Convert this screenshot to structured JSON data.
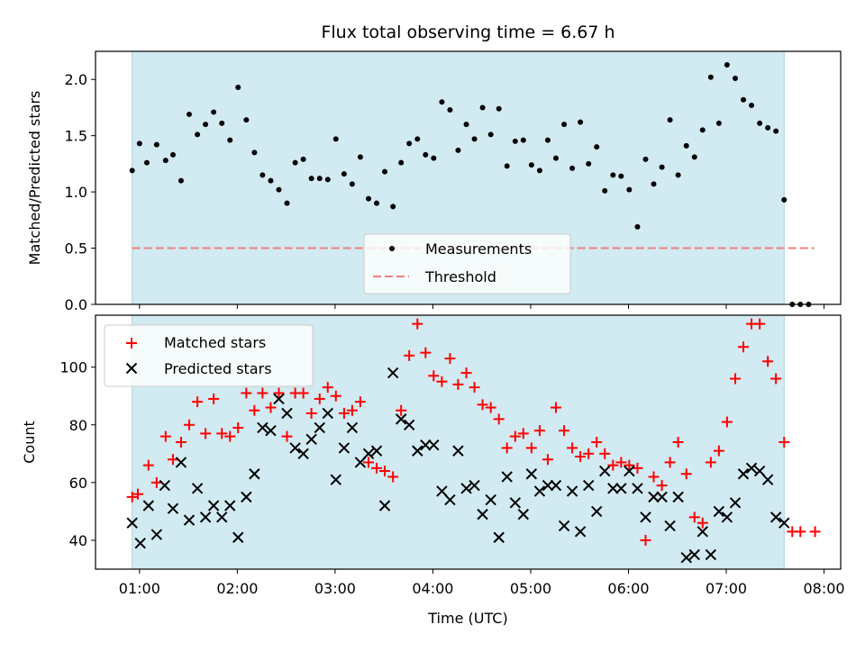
{
  "chart_data": [
    {
      "type": "scatter",
      "title": "Flux total observing time = 6.67 h",
      "xlabel": "",
      "ylabel": "Matched/Predicted stars",
      "ylim": [
        0.0,
        2.25
      ],
      "yticks": [
        "0.0",
        "0.5",
        "1.0",
        "1.5",
        "2.0"
      ],
      "observing_window": {
        "start": 0.925,
        "end": 7.592,
        "color": "#add8e6"
      },
      "legend_position": "lower center",
      "series": [
        {
          "name": "Measurements",
          "marker": "dot",
          "color": "#000000",
          "x": [
            0.925,
            1.0,
            1.075,
            1.175,
            1.267,
            1.342,
            1.425,
            1.508,
            1.592,
            1.675,
            1.758,
            1.842,
            1.925,
            2.008,
            2.092,
            2.175,
            2.258,
            2.342,
            2.425,
            2.508,
            2.592,
            2.675,
            2.758,
            2.842,
            2.925,
            3.008,
            3.092,
            3.175,
            3.258,
            3.342,
            3.425,
            3.508,
            3.592,
            3.675,
            3.758,
            3.842,
            3.925,
            4.008,
            4.092,
            4.175,
            4.258,
            4.342,
            4.425,
            4.508,
            4.592,
            4.675,
            4.758,
            4.842,
            4.925,
            5.008,
            5.092,
            5.175,
            5.258,
            5.342,
            5.425,
            5.508,
            5.592,
            5.675,
            5.758,
            5.842,
            5.925,
            6.008,
            6.092,
            6.175,
            6.258,
            6.342,
            6.425,
            6.508,
            6.592,
            6.675,
            6.758,
            6.842,
            6.925,
            7.008,
            7.092,
            7.175,
            7.258,
            7.342,
            7.425,
            7.508,
            7.592,
            7.675,
            7.758,
            7.842
          ],
          "y": [
            1.19,
            1.43,
            1.26,
            1.42,
            1.28,
            1.33,
            1.1,
            1.69,
            1.51,
            1.6,
            1.71,
            1.61,
            1.46,
            1.93,
            1.64,
            1.35,
            1.15,
            1.1,
            1.02,
            0.9,
            1.26,
            1.29,
            1.12,
            1.12,
            1.11,
            1.47,
            1.16,
            1.07,
            1.31,
            0.94,
            0.9,
            1.18,
            0.87,
            1.26,
            1.43,
            1.47,
            1.33,
            1.3,
            1.8,
            1.73,
            1.37,
            1.6,
            1.47,
            1.75,
            1.51,
            1.74,
            1.23,
            1.45,
            1.46,
            1.24,
            1.19,
            1.46,
            1.3,
            1.6,
            1.21,
            1.62,
            1.25,
            1.4,
            1.01,
            1.15,
            1.14,
            1.02,
            0.69,
            1.29,
            1.07,
            1.22,
            1.64,
            1.15,
            1.41,
            1.31,
            1.55,
            2.02,
            1.61,
            2.13,
            2.01,
            1.82,
            1.77,
            1.61,
            1.57,
            1.54,
            0.93,
            0.0,
            0.0,
            0.0
          ]
        },
        {
          "name": "Threshold",
          "style": "dashed",
          "color": "#f08080",
          "x": [
            0.925,
            7.9
          ],
          "y": [
            0.5,
            0.5
          ]
        }
      ]
    },
    {
      "type": "scatter",
      "title": "",
      "xlabel": "Time (UTC)",
      "ylabel": "Count",
      "ylim": [
        30,
        118
      ],
      "yticks": [
        "40",
        "60",
        "80",
        "100"
      ],
      "xlim": [
        0.55,
        8.17
      ],
      "xticks": [
        {
          "value": 1,
          "label": "01:00"
        },
        {
          "value": 2,
          "label": "02:00"
        },
        {
          "value": 3,
          "label": "03:00"
        },
        {
          "value": 4,
          "label": "04:00"
        },
        {
          "value": 5,
          "label": "05:00"
        },
        {
          "value": 6,
          "label": "06:00"
        },
        {
          "value": 7,
          "label": "07:00"
        },
        {
          "value": 8,
          "label": "08:00"
        }
      ],
      "observing_window": {
        "start": 0.925,
        "end": 7.592,
        "color": "#add8e6"
      },
      "legend_position": "upper left",
      "series": [
        {
          "name": "Matched stars",
          "marker": "plus",
          "color": "#ff0000",
          "x": [
            0.925,
            0.983,
            1.092,
            1.175,
            1.267,
            1.342,
            1.425,
            1.508,
            1.592,
            1.675,
            1.758,
            1.842,
            1.925,
            2.008,
            2.092,
            2.175,
            2.258,
            2.342,
            2.425,
            2.508,
            2.592,
            2.675,
            2.758,
            2.842,
            2.925,
            3.008,
            3.092,
            3.175,
            3.258,
            3.342,
            3.425,
            3.508,
            3.592,
            3.675,
            3.758,
            3.842,
            3.925,
            4.008,
            4.092,
            4.175,
            4.258,
            4.342,
            4.425,
            4.508,
            4.592,
            4.675,
            4.758,
            4.842,
            4.925,
            5.008,
            5.092,
            5.175,
            5.258,
            5.342,
            5.425,
            5.508,
            5.592,
            5.675,
            5.758,
            5.842,
            5.925,
            6.008,
            6.092,
            6.175,
            6.258,
            6.342,
            6.425,
            6.508,
            6.592,
            6.675,
            6.758,
            6.842,
            6.925,
            7.008,
            7.092,
            7.175,
            7.258,
            7.342,
            7.425,
            7.508,
            7.592,
            7.675,
            7.758,
            7.908
          ],
          "y": [
            55,
            56,
            66,
            60,
            76,
            68,
            74,
            80,
            88,
            77,
            89,
            77,
            76,
            79,
            91,
            85,
            91,
            86,
            91,
            76,
            91,
            91,
            84,
            89,
            93,
            90,
            84,
            85,
            88,
            67,
            65,
            64,
            62,
            85,
            104,
            115,
            105,
            97,
            95,
            103,
            94,
            98,
            93,
            87,
            86,
            82,
            72,
            76,
            77,
            72,
            78,
            68,
            86,
            78,
            72,
            69,
            70,
            74,
            70,
            66,
            67,
            66,
            65,
            40,
            62,
            59,
            67,
            74,
            63,
            48,
            46,
            67,
            71,
            81,
            96,
            107,
            115,
            115,
            102,
            96,
            74,
            43,
            43,
            43
          ]
        },
        {
          "name": "Predicted stars",
          "marker": "x",
          "color": "#000000",
          "x": [
            0.925,
            1.008,
            1.092,
            1.175,
            1.258,
            1.342,
            1.425,
            1.508,
            1.592,
            1.675,
            1.758,
            1.842,
            1.925,
            2.008,
            2.092,
            2.175,
            2.258,
            2.342,
            2.425,
            2.508,
            2.592,
            2.675,
            2.758,
            2.842,
            2.925,
            3.008,
            3.092,
            3.175,
            3.258,
            3.342,
            3.425,
            3.508,
            3.592,
            3.675,
            3.758,
            3.842,
            3.925,
            4.008,
            4.092,
            4.175,
            4.258,
            4.342,
            4.425,
            4.508,
            4.592,
            4.675,
            4.758,
            4.842,
            4.925,
            5.008,
            5.092,
            5.175,
            5.258,
            5.342,
            5.425,
            5.508,
            5.592,
            5.675,
            5.758,
            5.842,
            5.925,
            6.008,
            6.092,
            6.175,
            6.258,
            6.342,
            6.425,
            6.508,
            6.592,
            6.675,
            6.758,
            6.842,
            6.925,
            7.008,
            7.092,
            7.175,
            7.258,
            7.342,
            7.425,
            7.508,
            7.592
          ],
          "y": [
            46,
            39,
            52,
            42,
            59,
            51,
            67,
            47,
            58,
            48,
            52,
            48,
            52,
            41,
            55,
            63,
            79,
            78,
            89,
            84,
            72,
            70,
            75,
            79,
            84,
            61,
            72,
            79,
            67,
            70,
            71,
            52,
            98,
            82,
            80,
            71,
            73,
            73,
            57,
            54,
            71,
            58,
            59,
            49,
            54,
            41,
            62,
            53,
            49,
            63,
            57,
            59,
            59,
            45,
            57,
            43,
            59,
            50,
            64,
            58,
            58,
            64,
            58,
            48,
            55,
            55,
            45,
            55,
            34,
            35,
            43,
            35,
            50,
            48,
            53,
            63,
            65,
            64,
            61,
            48,
            46
          ]
        }
      ]
    }
  ]
}
